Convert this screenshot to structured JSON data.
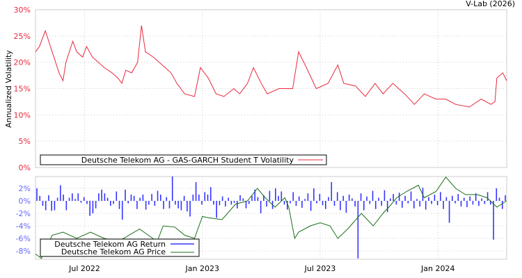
{
  "credit": "V-Lab (2026)",
  "chart_data": [
    {
      "type": "line",
      "ylabel": "Annualized Volatility",
      "ylim": [
        0,
        30
      ],
      "yticks": [
        "0%",
        "5%",
        "10%",
        "15%",
        "20%",
        "25%",
        "30%"
      ],
      "xlim_months_since_2022_04_15": [
        0,
        24
      ],
      "legend": "Deutsche Telekom AG - GAS-GARCH Student T Volatility",
      "legend_placement": "bottom-center",
      "color": "#e8283c",
      "series": [
        [
          0,
          22
        ],
        [
          0.2,
          23
        ],
        [
          0.5,
          26
        ],
        [
          0.85,
          22
        ],
        [
          1.2,
          18
        ],
        [
          1.4,
          16.5
        ],
        [
          1.55,
          20
        ],
        [
          1.9,
          24
        ],
        [
          2.1,
          22
        ],
        [
          2.4,
          21
        ],
        [
          2.6,
          23
        ],
        [
          2.9,
          21
        ],
        [
          3.2,
          20
        ],
        [
          3.5,
          19
        ],
        [
          3.9,
          18
        ],
        [
          4.2,
          17
        ],
        [
          4.4,
          16
        ],
        [
          4.6,
          18.5
        ],
        [
          4.9,
          18
        ],
        [
          5.2,
          20
        ],
        [
          5.4,
          27
        ],
        [
          5.6,
          22
        ],
        [
          6.0,
          21
        ],
        [
          6.3,
          20
        ],
        [
          6.9,
          18
        ],
        [
          7.2,
          16
        ],
        [
          7.6,
          14
        ],
        [
          8.1,
          13.5
        ],
        [
          8.4,
          19
        ],
        [
          8.8,
          17
        ],
        [
          9.2,
          14
        ],
        [
          9.6,
          13.5
        ],
        [
          10.1,
          15
        ],
        [
          10.4,
          14
        ],
        [
          10.8,
          16
        ],
        [
          11.1,
          19
        ],
        [
          11.5,
          16
        ],
        [
          11.8,
          14
        ],
        [
          12.4,
          15
        ],
        [
          12.7,
          15
        ],
        [
          13.1,
          15
        ],
        [
          13.4,
          22
        ],
        [
          13.8,
          19
        ],
        [
          14.3,
          15
        ],
        [
          14.9,
          16
        ],
        [
          15.4,
          19.5
        ],
        [
          15.7,
          16
        ],
        [
          16.3,
          15.5
        ],
        [
          16.8,
          13.5
        ],
        [
          17.3,
          16
        ],
        [
          17.7,
          14
        ],
        [
          18.2,
          16
        ],
        [
          18.8,
          14
        ],
        [
          19.3,
          12
        ],
        [
          19.8,
          14
        ],
        [
          20.4,
          13
        ],
        [
          20.9,
          13
        ],
        [
          21.4,
          12
        ],
        [
          22.1,
          11.5
        ],
        [
          22.7,
          13
        ],
        [
          23.2,
          12
        ],
        [
          23.4,
          12.5
        ],
        [
          23.5,
          17
        ],
        [
          23.8,
          18
        ],
        [
          24,
          16.5
        ]
      ]
    },
    {
      "type": "bar",
      "ylim": [
        -9.3,
        3.9
      ],
      "yticks": [
        "-8%",
        "-6%",
        "-4%",
        "-2%",
        "0%",
        "2%"
      ],
      "xticks": [
        {
          "label": "Jul 2022",
          "month": 2.5
        },
        {
          "label": "Jan 2023",
          "month": 8.5
        },
        {
          "label": "Jul 2023",
          "month": 14.5
        },
        {
          "label": "Jan 2024",
          "month": 20.5
        }
      ],
      "legend": [
        "Deutsche Telekom AG Return",
        "Deutsche Telekom AG Price"
      ],
      "legend_placement": "bottom-left",
      "return_color": "#3333ff",
      "price_color": "#1a6e1a",
      "returns": [
        2,
        0.8,
        -0.8,
        -1.5,
        0.9,
        -1.6,
        -1.5,
        0.5,
        2.5,
        1,
        -1.5,
        0.5,
        1.2,
        0.3,
        1.2,
        -0.3,
        0.6,
        -0.5,
        -2.4,
        -2,
        -1.2,
        1.2,
        1.8,
        1.2,
        0.5,
        -0.8,
        -0.5,
        1.5,
        -1.3,
        -3,
        1.8,
        -0.4,
        1,
        0.8,
        -1.3,
        0.5,
        1,
        -1.4,
        -0.6,
        1.1,
        -0.8,
        1.6,
        1,
        -1.3,
        0.6,
        -1.2,
        3.9,
        -0.6,
        -1.2,
        -1.5,
        0.8,
        -1.7,
        -2.5,
        1,
        3,
        1,
        -0.6,
        1.4,
        1,
        2.2,
        -0.6,
        -2.7,
        -0.7,
        0.7,
        -0.9,
        0.5,
        -0.6,
        -0.3,
        -1.2,
        0.9,
        0.4,
        -1.2,
        -0.5,
        0.8,
        1.8,
        0.6,
        -2,
        0.9,
        -0.9,
        1.6,
        -1.3,
        2,
        0.8,
        1.5,
        -0.6,
        -1.4,
        -0.4,
        1.4,
        -0.8,
        0.7,
        -1.1,
        0.3,
        1.2,
        -1.6,
        2,
        -0.4,
        1.1,
        -0.7,
        -1.3,
        0.6,
        3,
        -0.8,
        1.4,
        -1.5,
        0.8,
        -1.9,
        1,
        0.4,
        -0.9,
        -9.2,
        1.2,
        -1.5,
        0.7,
        -0.5,
        1.6,
        -1.3,
        0.5,
        -0.8,
        1.7,
        -1.8,
        0.4,
        1.1,
        -0.6,
        1.3,
        -1.1,
        0.8,
        -0.4,
        1.5,
        -1.2,
        0.3,
        -0.9,
        2.1,
        -1.4,
        0.6,
        -0.5,
        1,
        -0.7,
        1.4,
        -1.3,
        0.6,
        -3.5,
        0.8,
        -0.4,
        1.1,
        -0.9,
        0.5,
        -1,
        0.7,
        -0.6,
        1.2,
        -0.8,
        0.4,
        -0.5,
        1.4,
        -0.6,
        -6.2,
        2,
        0.5,
        -1.3,
        0.9
      ],
      "price": [
        [
          0,
          -8.5
        ],
        [
          0.3,
          -9.2
        ],
        [
          0.85,
          -5.5
        ],
        [
          1.4,
          -5
        ],
        [
          2.1,
          -6
        ],
        [
          2.8,
          -5
        ],
        [
          3.5,
          -6
        ],
        [
          4.2,
          -6.5
        ],
        [
          4.6,
          -5.8
        ],
        [
          5.3,
          -4.5
        ],
        [
          6.2,
          -6.5
        ],
        [
          6.5,
          -4
        ],
        [
          7.1,
          -4.2
        ],
        [
          7.6,
          -5.5
        ],
        [
          8.1,
          -6
        ],
        [
          8.5,
          -2.5
        ],
        [
          8.8,
          -2.7
        ],
        [
          9.5,
          -3
        ],
        [
          10.2,
          -0.5
        ],
        [
          10.8,
          0
        ],
        [
          11.3,
          2
        ],
        [
          11.7,
          0.5
        ],
        [
          12.2,
          -1
        ],
        [
          12.7,
          0.5
        ],
        [
          12.9,
          -1
        ],
        [
          13.2,
          -6
        ],
        [
          13.4,
          -5
        ],
        [
          14,
          -4
        ],
        [
          14.5,
          -3.5
        ],
        [
          15,
          -4
        ],
        [
          15.4,
          -6
        ],
        [
          15.9,
          -4.5
        ],
        [
          16.6,
          -2
        ],
        [
          17.2,
          -4
        ],
        [
          17.7,
          -2
        ],
        [
          18,
          -1
        ],
        [
          18.4,
          0.5
        ],
        [
          18.9,
          1.5
        ],
        [
          19.5,
          2.5
        ],
        [
          19.8,
          0.5
        ],
        [
          20.4,
          1.5
        ],
        [
          20.9,
          3.8
        ],
        [
          21.4,
          2
        ],
        [
          21.9,
          1
        ],
        [
          22.5,
          1
        ],
        [
          23,
          0.5
        ],
        [
          23.5,
          -1
        ],
        [
          24,
          0
        ]
      ]
    }
  ]
}
